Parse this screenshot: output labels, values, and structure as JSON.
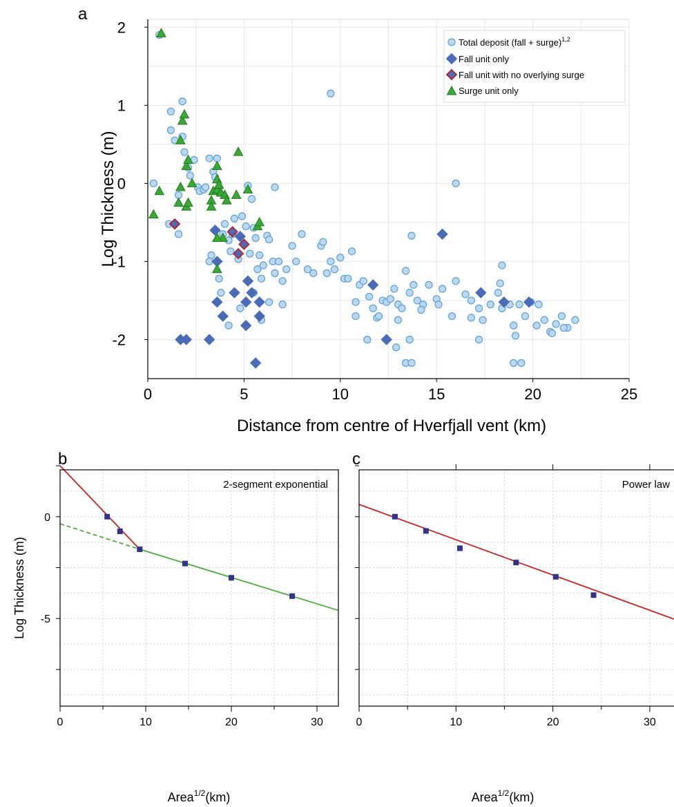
{
  "colors": {
    "circle_fill": "#bcd8f0",
    "circle_stroke": "#5aa0d8",
    "diamond": "#4a6cb8",
    "diamond_red_stroke": "#b8202a",
    "triangle_fill": "#3aa836",
    "triangle_stroke": "#1f7a1c",
    "red_line": "#cc2222",
    "green_line": "#4caf3a",
    "square": "#33338a"
  },
  "chart_data": [
    {
      "panel": "a",
      "type": "scatter",
      "xlabel": "Distance from centre of Hverfjall vent (km)",
      "ylabel": "Log Thickness (m)",
      "xlim": [
        0,
        25
      ],
      "ylim": [
        -2.5,
        2.1
      ],
      "xticks": [
        "0",
        "5",
        "10",
        "15",
        "20",
        "25"
      ],
      "yticks": [
        "2",
        "1",
        "0",
        "-1",
        "-2"
      ],
      "grid": true,
      "legend_position": "top-right",
      "series": [
        {
          "name": "Total deposit (fall + surge)",
          "name_sup": "1,2",
          "marker": "circle",
          "points": [
            [
              0.3,
              0
            ],
            [
              0.6,
              1.9
            ],
            [
              1.2,
              0.92
            ],
            [
              1.2,
              0.68
            ],
            [
              1.4,
              0.55
            ],
            [
              1.6,
              -0.15
            ],
            [
              1.8,
              1.05
            ],
            [
              1.8,
              0.6
            ],
            [
              1.9,
              0.4
            ],
            [
              2.1,
              0.2
            ],
            [
              2.2,
              0.1
            ],
            [
              2.4,
              0.3
            ],
            [
              2.6,
              -0.05
            ],
            [
              1.6,
              -0.65
            ],
            [
              1.1,
              -0.52
            ],
            [
              2.7,
              -0.1
            ],
            [
              2.9,
              -0.08
            ],
            [
              3.0,
              -0.05
            ],
            [
              3.2,
              0.32
            ],
            [
              3.4,
              0.15
            ],
            [
              3.5,
              0.08
            ],
            [
              3.6,
              0.32
            ],
            [
              3.3,
              -0.92
            ],
            [
              3.2,
              -1.0
            ],
            [
              3.7,
              -1.22
            ],
            [
              3.9,
              -0.65
            ],
            [
              4.0,
              -0.52
            ],
            [
              4.2,
              -0.73
            ],
            [
              4.3,
              -0.87
            ],
            [
              4.5,
              -0.45
            ],
            [
              4.4,
              -0.65
            ],
            [
              4.7,
              -0.97
            ],
            [
              4.9,
              -0.42
            ],
            [
              5.1,
              -0.55
            ],
            [
              5.3,
              -0.9
            ],
            [
              5.4,
              -0.2
            ],
            [
              5.2,
              -0.03
            ],
            [
              5.5,
              -0.57
            ],
            [
              5.6,
              -0.7
            ],
            [
              5.8,
              -0.92
            ],
            [
              5.7,
              -1.1
            ],
            [
              5.9,
              -1.22
            ],
            [
              6.0,
              -1.05
            ],
            [
              6.2,
              -0.67
            ],
            [
              6.3,
              -0.72
            ],
            [
              6.5,
              -1.0
            ],
            [
              6.6,
              -1.15
            ],
            [
              6.8,
              -1.0
            ],
            [
              7.0,
              -1.25
            ],
            [
              7.2,
              -1.1
            ],
            [
              7.5,
              -0.8
            ],
            [
              7.7,
              -1.0
            ],
            [
              8.0,
              -0.65
            ],
            [
              8.3,
              -1.1
            ],
            [
              8.6,
              -1.15
            ],
            [
              9.0,
              -0.8
            ],
            [
              9.1,
              -0.75
            ],
            [
              9.3,
              -1.15
            ],
            [
              9.5,
              -1.0
            ],
            [
              9.7,
              -1.1
            ],
            [
              10.0,
              -0.95
            ],
            [
              10.2,
              -1.22
            ],
            [
              10.4,
              -1.22
            ],
            [
              10.6,
              -0.87
            ],
            [
              10.8,
              -1.7
            ],
            [
              11.0,
              -1.3
            ],
            [
              11.2,
              -1.25
            ],
            [
              11.5,
              -1.45
            ],
            [
              11.7,
              -1.6
            ],
            [
              11.9,
              -1.72
            ],
            [
              12.2,
              -1.5
            ],
            [
              12.4,
              -1.52
            ],
            [
              12.6,
              -1.48
            ],
            [
              12.8,
              -1.35
            ],
            [
              13.0,
              -1.55
            ],
            [
              13.2,
              -1.6
            ],
            [
              13.4,
              -1.12
            ],
            [
              13.6,
              -1.4
            ],
            [
              13.8,
              -1.3
            ],
            [
              14.0,
              -1.5
            ],
            [
              14.3,
              -1.55
            ],
            [
              14.6,
              -1.3
            ],
            [
              15.0,
              -1.48
            ],
            [
              15.3,
              -1.35
            ],
            [
              15.8,
              -1.7
            ],
            [
              16.0,
              -1.25
            ],
            [
              16.5,
              -1.42
            ],
            [
              16.8,
              -1.5
            ],
            [
              17.2,
              -1.6
            ],
            [
              17.4,
              -1.75
            ],
            [
              17.8,
              -1.55
            ],
            [
              18.2,
              -1.4
            ],
            [
              18.4,
              -1.6
            ],
            [
              18.8,
              -1.55
            ],
            [
              19.0,
              -1.82
            ],
            [
              19.3,
              -1.55
            ],
            [
              19.6,
              -1.7
            ],
            [
              19.9,
              -1.52
            ],
            [
              20.3,
              -1.55
            ],
            [
              20.6,
              -1.75
            ],
            [
              20.9,
              -1.9
            ],
            [
              21.2,
              -1.8
            ],
            [
              21.5,
              -1.7
            ],
            [
              21.8,
              -1.85
            ],
            [
              22.2,
              -1.75
            ],
            [
              16.0,
              0.0
            ],
            [
              9.5,
              1.15
            ],
            [
              6.6,
              -0.05
            ],
            [
              13.7,
              -0.67
            ],
            [
              18.4,
              -1.05
            ],
            [
              19.0,
              -2.3
            ],
            [
              19.4,
              -2.3
            ],
            [
              13.4,
              -2.3
            ],
            [
              13.7,
              -2.3
            ],
            [
              12.9,
              -2.1
            ],
            [
              11.4,
              -2.0
            ],
            [
              13.6,
              -2.0
            ],
            [
              17.2,
              -2.0
            ],
            [
              10.8,
              -1.52
            ],
            [
              12.0,
              -1.7
            ],
            [
              13.0,
              -1.75
            ],
            [
              14.2,
              -1.62
            ],
            [
              15.1,
              -1.55
            ],
            [
              16.8,
              -1.72
            ],
            [
              18.3,
              -1.28
            ],
            [
              19.1,
              -1.95
            ],
            [
              20.2,
              -1.82
            ],
            [
              21.0,
              -1.92
            ],
            [
              21.6,
              -1.85
            ],
            [
              4.8,
              -1.6
            ],
            [
              5.5,
              -1.4
            ],
            [
              6.3,
              -1.52
            ],
            [
              7.0,
              -1.55
            ],
            [
              3.8,
              -1.4
            ],
            [
              5.9,
              -1.75
            ],
            [
              4.2,
              -1.82
            ]
          ]
        },
        {
          "name": "Fall unit only",
          "marker": "diamond",
          "points": [
            [
              1.7,
              -2.0
            ],
            [
              2.0,
              -2.0
            ],
            [
              3.2,
              -2.0
            ],
            [
              3.5,
              -0.6
            ],
            [
              3.6,
              -1.0
            ],
            [
              3.6,
              -1.52
            ],
            [
              3.9,
              -1.7
            ],
            [
              4.5,
              -1.4
            ],
            [
              4.8,
              -0.68
            ],
            [
              5.1,
              -1.52
            ],
            [
              5.1,
              -1.82
            ],
            [
              5.2,
              -1.25
            ],
            [
              5.4,
              -1.4
            ],
            [
              5.6,
              -2.3
            ],
            [
              5.8,
              -1.52
            ],
            [
              5.8,
              -1.7
            ],
            [
              11.7,
              -1.3
            ],
            [
              12.4,
              -2.0
            ],
            [
              15.3,
              -0.65
            ],
            [
              17.3,
              -1.4
            ],
            [
              18.5,
              -1.52
            ],
            [
              19.8,
              -1.52
            ]
          ]
        },
        {
          "name": "Fall unit with no overlying surge",
          "marker": "diamond-red",
          "points": [
            [
              1.4,
              -0.52
            ],
            [
              4.4,
              -0.62
            ],
            [
              4.7,
              -0.9
            ],
            [
              5.0,
              -0.78
            ]
          ]
        },
        {
          "name": "Surge unit only",
          "marker": "triangle",
          "points": [
            [
              0.7,
              1.92
            ],
            [
              0.3,
              -0.4
            ],
            [
              0.6,
              -0.1
            ],
            [
              1.6,
              -0.25
            ],
            [
              1.7,
              -0.05
            ],
            [
              1.7,
              0.55
            ],
            [
              1.8,
              0.8
            ],
            [
              1.9,
              0.88
            ],
            [
              2.0,
              0.22
            ],
            [
              2.0,
              -0.3
            ],
            [
              2.1,
              0.3
            ],
            [
              2.1,
              -0.25
            ],
            [
              2.3,
              0.0
            ],
            [
              3.3,
              -0.22
            ],
            [
              3.3,
              -0.3
            ],
            [
              3.4,
              -0.1
            ],
            [
              3.6,
              0.22
            ],
            [
              3.6,
              0.05
            ],
            [
              3.6,
              -0.08
            ],
            [
              3.7,
              -0.02
            ],
            [
              3.8,
              -0.12
            ],
            [
              3.9,
              -0.7
            ],
            [
              4.0,
              -0.15
            ],
            [
              4.1,
              -0.22
            ],
            [
              4.6,
              -0.15
            ],
            [
              4.7,
              0.4
            ],
            [
              5.2,
              -0.08
            ],
            [
              5.7,
              -0.55
            ],
            [
              5.8,
              -0.5
            ],
            [
              3.6,
              -1.1
            ],
            [
              3.6,
              -0.7
            ]
          ]
        }
      ]
    },
    {
      "panel": "b",
      "type": "line",
      "annotation": "2-segment exponential",
      "xlabel": "Area",
      "xlabel_sup": "1/2",
      "xlabel_unit": "(km)",
      "ylabel": "Log Thickness (m)",
      "xlim": [
        0,
        32.5
      ],
      "ylim": [
        -9.3,
        2.3
      ],
      "xticks": [
        "0",
        "10",
        "20",
        "30"
      ],
      "yticks": [
        "0",
        "-5"
      ],
      "grid": true,
      "points": [
        [
          5.5,
          0.0
        ],
        [
          7.0,
          -0.72
        ],
        [
          9.3,
          -1.6
        ],
        [
          14.6,
          -2.3
        ],
        [
          20.0,
          -3.0
        ],
        [
          27.1,
          -3.9
        ]
      ],
      "series": [
        {
          "segment": "steep",
          "line": "solid",
          "color": "red",
          "x": [
            0,
            9.3
          ],
          "y": [
            2.5,
            -1.6
          ]
        },
        {
          "segment": "gentle",
          "line": "solid",
          "color": "green",
          "x": [
            9.3,
            32.5
          ],
          "y": [
            -1.6,
            -4.6
          ]
        },
        {
          "segment": "gentle-extrapolated",
          "line": "dashed",
          "color": "green",
          "x": [
            0,
            9.3
          ],
          "y": [
            -0.35,
            -1.6
          ]
        }
      ]
    },
    {
      "panel": "c",
      "type": "line",
      "annotation": "Power law",
      "xlabel": "Area",
      "xlabel_sup": "1/2",
      "xlabel_unit": "(km)",
      "xlim": [
        0,
        33.5
      ],
      "ylim": [
        -9.3,
        2.3
      ],
      "xticks": [
        "0",
        "10",
        "20",
        "30"
      ],
      "grid": true,
      "points": [
        [
          3.7,
          0.0
        ],
        [
          6.9,
          -0.7
        ],
        [
          10.4,
          -1.55
        ],
        [
          16.2,
          -2.25
        ],
        [
          20.3,
          -2.95
        ],
        [
          24.2,
          -3.85
        ]
      ],
      "series": [
        {
          "segment": "fit",
          "line": "solid",
          "color": "red",
          "x": [
            0,
            33.5
          ],
          "y": [
            0.6,
            -5.2
          ]
        }
      ]
    }
  ],
  "legend": {
    "items": [
      {
        "label": "Total deposit (fall + surge)",
        "sup": "1,2"
      },
      {
        "label": "Fall unit only",
        "sup": ""
      },
      {
        "label": "Fall unit with no overlying surge",
        "sup": ""
      },
      {
        "label": "Surge unit only",
        "sup": ""
      }
    ]
  },
  "panels": {
    "a": "a",
    "b": "b",
    "c": "c"
  }
}
